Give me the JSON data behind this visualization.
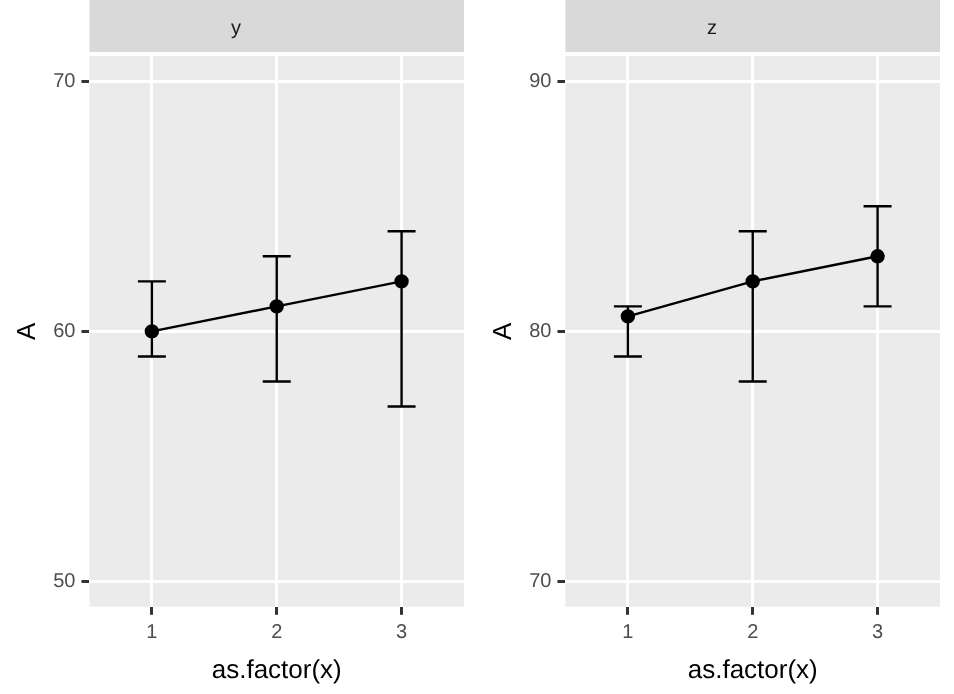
{
  "chart_data": [
    {
      "type": "line",
      "title": "y",
      "xlabel": "as.factor(x)",
      "ylabel": "A",
      "categories": [
        "1",
        "2",
        "3"
      ],
      "values": [
        60,
        61,
        62
      ],
      "errors": [
        [
          59,
          62
        ],
        [
          58,
          63
        ],
        [
          57,
          64
        ]
      ],
      "color": "#000000",
      "marker": "circle",
      "ylim": [
        49,
        71
      ],
      "yticks": [
        50,
        60,
        70
      ],
      "grid": true
    },
    {
      "type": "line",
      "title": "z",
      "xlabel": "as.factor(x)",
      "ylabel": "A",
      "categories": [
        "1",
        "2",
        "3"
      ],
      "values": [
        80.6,
        82,
        83
      ],
      "errors": [
        [
          79,
          81
        ],
        [
          78,
          84
        ],
        [
          81,
          85
        ]
      ],
      "color": "#000000",
      "marker": "circle",
      "ylim": [
        69,
        91
      ],
      "yticks": [
        70,
        80,
        90
      ],
      "grid": true
    }
  ]
}
